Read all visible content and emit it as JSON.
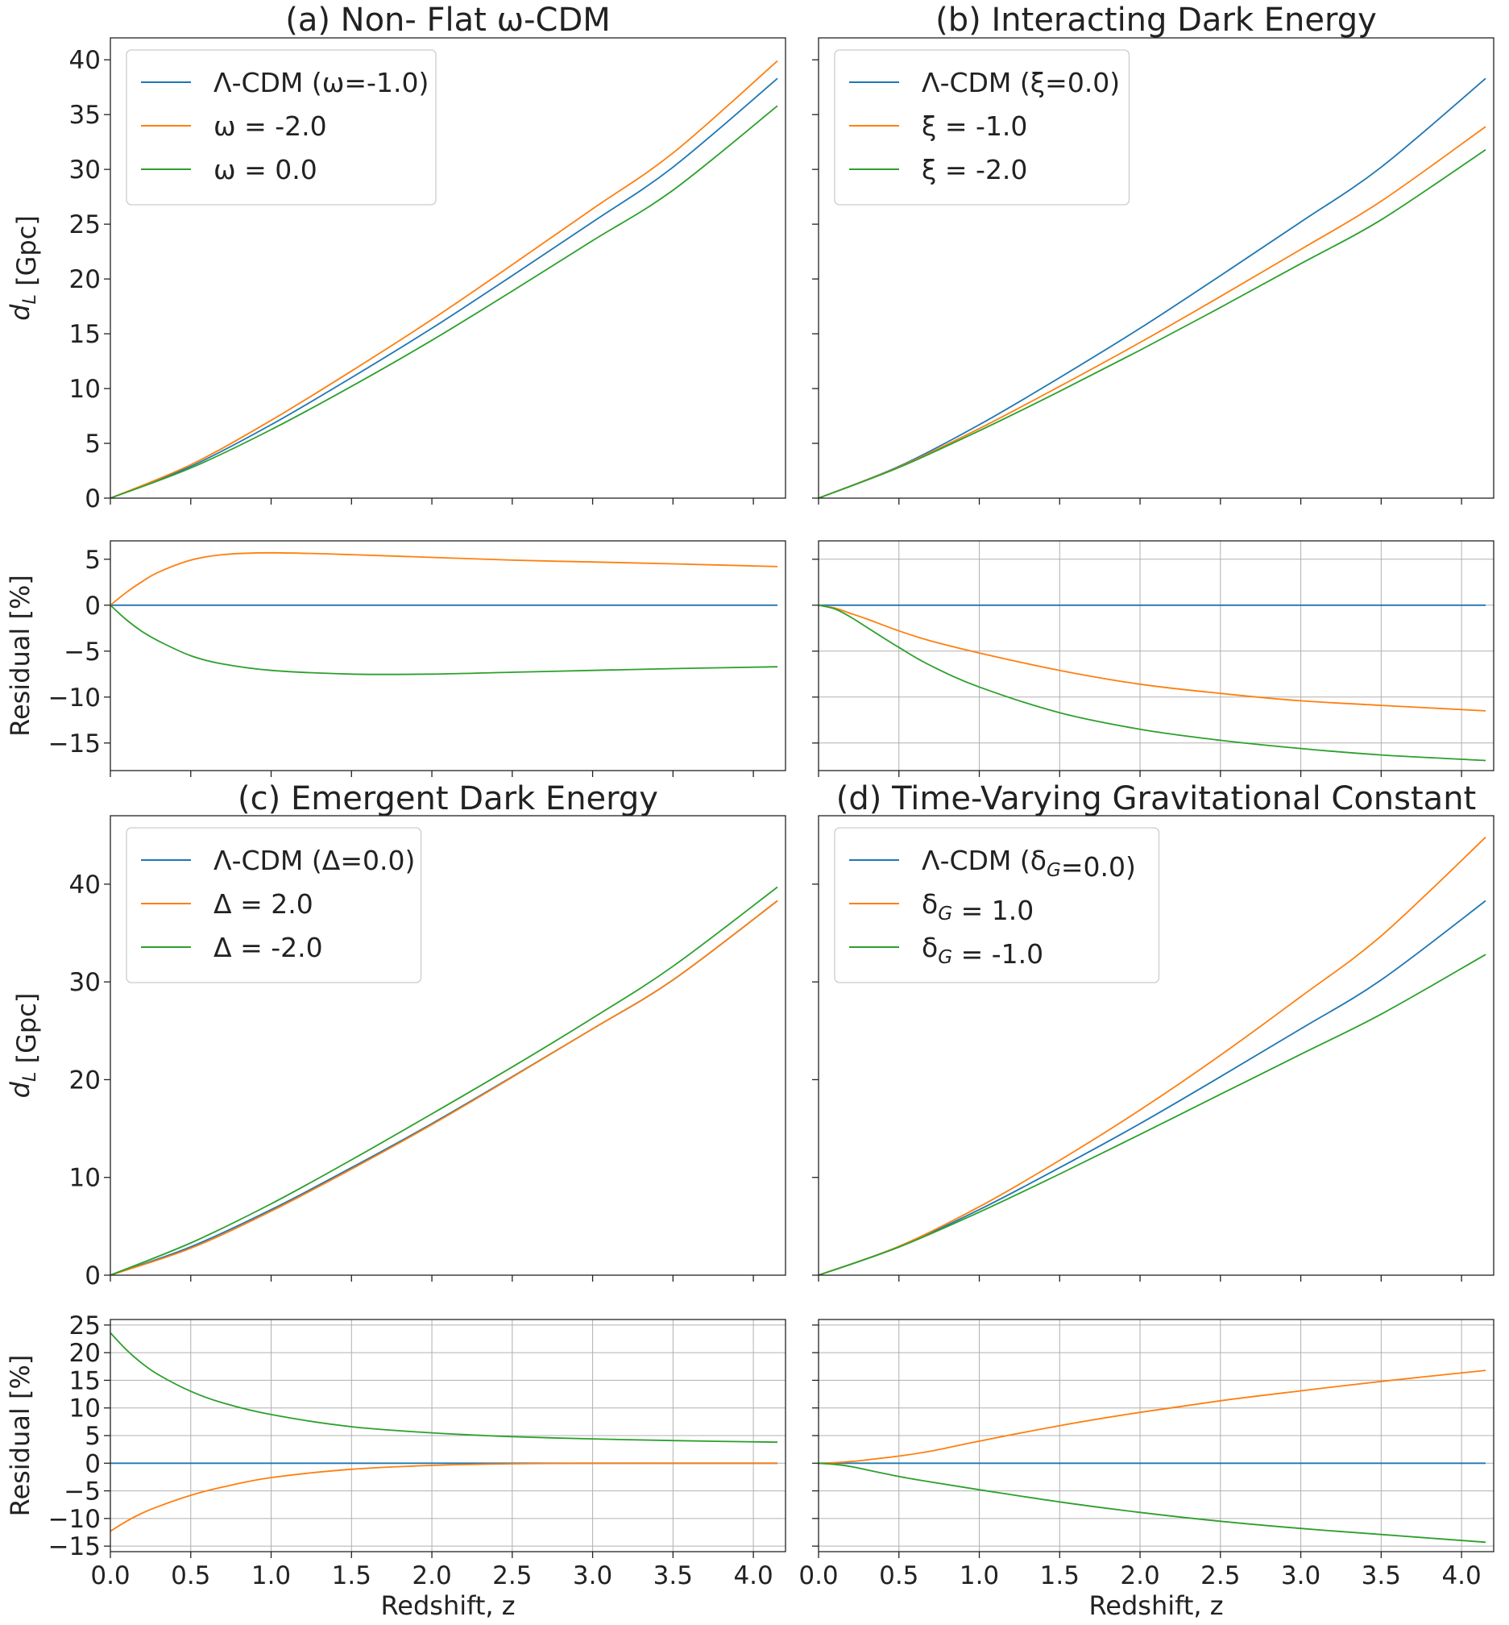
{
  "colors": {
    "blue": "#1f77b4",
    "orange": "#ff7f0e",
    "green": "#2ca02c"
  },
  "x_ticks": [
    0.0,
    0.5,
    1.0,
    1.5,
    2.0,
    2.5,
    3.0,
    3.5,
    4.0
  ],
  "x_tick_labels": [
    "0.0",
    "0.5",
    "1.0",
    "1.5",
    "2.0",
    "2.5",
    "3.0",
    "3.5",
    "4.0"
  ],
  "xlabel": "Redshift, z",
  "chart_data": [
    {
      "type": "line",
      "title": "(a) Non- Flat ω-CDM",
      "xlim": [
        0,
        4.2
      ],
      "main": {
        "ylabel": "d_L [Gpc]",
        "ylim": [
          0,
          42
        ],
        "yticks": [
          0,
          5,
          10,
          15,
          20,
          25,
          30,
          35,
          40
        ],
        "grid": false,
        "legend": "top-left",
        "series": [
          {
            "name": "Λ-CDM (ω=-1.0)",
            "color": "blue",
            "x": [
              0,
              0.5,
              1.0,
              1.5,
              2.0,
              2.5,
              3.0,
              3.5,
              4.15
            ],
            "y": [
              0,
              2.9,
              6.7,
              11.0,
              15.5,
              20.3,
              25.2,
              30.2,
              38.3
            ]
          },
          {
            "name": "ω = -2.0",
            "color": "orange",
            "x": [
              0,
              0.5,
              1.0,
              1.5,
              2.0,
              2.5,
              3.0,
              3.5,
              4.15
            ],
            "y": [
              0,
              3.05,
              7.1,
              11.6,
              16.3,
              21.3,
              26.4,
              31.5,
              39.9
            ]
          },
          {
            "name": "ω = 0.0",
            "color": "green",
            "x": [
              0,
              0.5,
              1.0,
              1.5,
              2.0,
              2.5,
              3.0,
              3.5,
              4.15
            ],
            "y": [
              0,
              2.75,
              6.25,
              10.2,
              14.4,
              18.9,
              23.5,
              28.1,
              35.8
            ]
          }
        ]
      },
      "residual": {
        "ylabel": "Residual [%]",
        "ylim": [
          -18,
          7
        ],
        "yticks": [
          5,
          0,
          -5,
          -10,
          -15
        ],
        "grid": false,
        "series": [
          {
            "color": "blue",
            "x": [
              0,
              4.15
            ],
            "y": [
              0,
              0
            ]
          },
          {
            "color": "orange",
            "x": [
              0,
              0.1,
              0.2,
              0.3,
              0.5,
              0.7,
              1.0,
              1.5,
              2.0,
              2.5,
              3.0,
              3.5,
              4.15
            ],
            "y": [
              0,
              1.4,
              2.6,
              3.6,
              4.9,
              5.5,
              5.7,
              5.5,
              5.2,
              4.9,
              4.7,
              4.5,
              4.2
            ]
          },
          {
            "color": "green",
            "x": [
              0,
              0.1,
              0.2,
              0.3,
              0.5,
              0.7,
              1.0,
              1.5,
              2.0,
              2.5,
              3.0,
              3.5,
              4.15
            ],
            "y": [
              0,
              -1.6,
              -2.9,
              -3.9,
              -5.5,
              -6.4,
              -7.1,
              -7.5,
              -7.5,
              -7.3,
              -7.1,
              -6.9,
              -6.7
            ]
          }
        ]
      }
    },
    {
      "type": "line",
      "title": "(b) Interacting Dark Energy",
      "xlim": [
        0,
        4.2
      ],
      "main": {
        "ylabel": "",
        "ylim": [
          0,
          42
        ],
        "yticks": [
          0,
          5,
          10,
          15,
          20,
          25,
          30,
          35,
          40
        ],
        "grid": false,
        "legend": "top-left",
        "series": [
          {
            "name": "Λ-CDM (ξ=0.0)",
            "color": "blue",
            "x": [
              0,
              0.5,
              1.0,
              1.5,
              2.0,
              2.5,
              3.0,
              3.5,
              4.15
            ],
            "y": [
              0,
              2.9,
              6.7,
              11.0,
              15.5,
              20.3,
              25.2,
              30.2,
              38.3
            ]
          },
          {
            "name": "ξ = -1.0",
            "color": "orange",
            "x": [
              0,
              0.5,
              1.0,
              1.5,
              2.0,
              2.5,
              3.0,
              3.5,
              4.15
            ],
            "y": [
              0,
              2.85,
              6.35,
              10.2,
              14.2,
              18.4,
              22.7,
              27.1,
              33.9
            ]
          },
          {
            "name": "ξ = -2.0",
            "color": "green",
            "x": [
              0,
              0.5,
              1.0,
              1.5,
              2.0,
              2.5,
              3.0,
              3.5,
              4.15
            ],
            "y": [
              0,
              2.8,
              6.15,
              9.75,
              13.5,
              17.4,
              21.4,
              25.4,
              31.8
            ]
          }
        ]
      },
      "residual": {
        "ylabel": "",
        "ylim": [
          -18,
          7
        ],
        "yticks": [
          5,
          0,
          -5,
          -10,
          -15
        ],
        "grid": true,
        "series": [
          {
            "color": "blue",
            "x": [
              0,
              4.15
            ],
            "y": [
              0,
              0
            ]
          },
          {
            "color": "orange",
            "x": [
              0,
              0.1,
              0.2,
              0.3,
              0.5,
              0.7,
              1.0,
              1.5,
              2.0,
              2.5,
              3.0,
              3.5,
              4.15
            ],
            "y": [
              0,
              -0.3,
              -0.9,
              -1.5,
              -2.8,
              -3.9,
              -5.2,
              -7.1,
              -8.6,
              -9.6,
              -10.4,
              -10.9,
              -11.5
            ]
          },
          {
            "color": "green",
            "x": [
              0,
              0.1,
              0.2,
              0.3,
              0.5,
              0.7,
              1.0,
              1.5,
              2.0,
              2.5,
              3.0,
              3.5,
              4.15
            ],
            "y": [
              0,
              -0.4,
              -1.3,
              -2.4,
              -4.6,
              -6.6,
              -8.9,
              -11.7,
              -13.5,
              -14.7,
              -15.6,
              -16.3,
              -16.9
            ]
          }
        ]
      }
    },
    {
      "type": "line",
      "title": "(c) Emergent Dark Energy",
      "xlim": [
        0,
        4.2
      ],
      "main": {
        "ylabel": "d_L [Gpc]",
        "ylim": [
          0,
          47
        ],
        "yticks": [
          0,
          10,
          20,
          30,
          40
        ],
        "grid": false,
        "legend": "top-left",
        "series": [
          {
            "name": "Λ-CDM (Δ=0.0)",
            "color": "blue",
            "x": [
              0,
              0.5,
              1.0,
              1.5,
              2.0,
              2.5,
              3.0,
              3.5,
              4.15
            ],
            "y": [
              0,
              2.9,
              6.7,
              11.0,
              15.5,
              20.3,
              25.2,
              30.2,
              38.3
            ]
          },
          {
            "name": "Δ = 2.0",
            "color": "orange",
            "x": [
              0,
              0.5,
              1.0,
              1.5,
              2.0,
              2.5,
              3.0,
              3.5,
              4.15
            ],
            "y": [
              0,
              2.75,
              6.55,
              10.85,
              15.4,
              20.25,
              25.2,
              30.2,
              38.3
            ]
          },
          {
            "name": "Δ = -2.0",
            "color": "green",
            "x": [
              0,
              0.5,
              1.0,
              1.5,
              2.0,
              2.5,
              3.0,
              3.5,
              4.15
            ],
            "y": [
              0,
              3.3,
              7.3,
              11.8,
              16.5,
              21.3,
              26.3,
              31.6,
              39.7
            ]
          }
        ]
      },
      "residual": {
        "ylabel": "Residual [%]",
        "ylim": [
          -16,
          26
        ],
        "yticks": [
          25,
          20,
          15,
          10,
          5,
          0,
          -5,
          -10,
          -15
        ],
        "grid": true,
        "series": [
          {
            "color": "blue",
            "x": [
              0,
              4.15
            ],
            "y": [
              0,
              0
            ]
          },
          {
            "color": "orange",
            "x": [
              0,
              0.1,
              0.2,
              0.3,
              0.5,
              0.7,
              1.0,
              1.5,
              2.0,
              2.5,
              3.0,
              3.5,
              4.15
            ],
            "y": [
              -12.3,
              -10.5,
              -9.0,
              -7.8,
              -5.8,
              -4.3,
              -2.6,
              -1.1,
              -0.4,
              -0.1,
              0,
              0,
              0
            ]
          },
          {
            "color": "green",
            "x": [
              0,
              0.1,
              0.2,
              0.3,
              0.5,
              0.7,
              1.0,
              1.5,
              2.0,
              2.5,
              3.0,
              3.5,
              4.15
            ],
            "y": [
              23.6,
              20.5,
              18.0,
              16.0,
              13.0,
              10.9,
              8.8,
              6.6,
              5.5,
              4.8,
              4.4,
              4.1,
              3.8
            ]
          }
        ]
      }
    },
    {
      "type": "line",
      "title": "(d) Time-Varying Gravitational Constant",
      "xlim": [
        0,
        4.2
      ],
      "main": {
        "ylabel": "",
        "ylim": [
          0,
          47
        ],
        "yticks": [
          0,
          10,
          20,
          30,
          40
        ],
        "grid": false,
        "legend": "top-left",
        "series": [
          {
            "name": "Λ-CDM (δ_G=0.0)",
            "color": "blue",
            "x": [
              0,
              0.5,
              1.0,
              1.5,
              2.0,
              2.5,
              3.0,
              3.5,
              4.15
            ],
            "y": [
              0,
              2.9,
              6.7,
              11.0,
              15.5,
              20.3,
              25.2,
              30.2,
              38.3
            ]
          },
          {
            "name": "δ_G = 1.0",
            "color": "orange",
            "x": [
              0,
              0.5,
              1.0,
              1.5,
              2.0,
              2.5,
              3.0,
              3.5,
              4.15
            ],
            "y": [
              0,
              2.95,
              7.0,
              11.75,
              16.9,
              22.5,
              28.5,
              34.7,
              44.8
            ]
          },
          {
            "name": "δ_G = -1.0",
            "color": "green",
            "x": [
              0,
              0.5,
              1.0,
              1.5,
              2.0,
              2.5,
              3.0,
              3.5,
              4.15
            ],
            "y": [
              0,
              2.88,
              6.45,
              10.35,
              14.4,
              18.5,
              22.6,
              26.7,
              32.8
            ]
          }
        ]
      },
      "residual": {
        "ylabel": "",
        "ylim": [
          -16,
          26
        ],
        "yticks": [
          25,
          20,
          15,
          10,
          5,
          0,
          -5,
          -10,
          -15
        ],
        "grid": true,
        "series": [
          {
            "color": "blue",
            "x": [
              0,
              4.15
            ],
            "y": [
              0,
              0
            ]
          },
          {
            "color": "orange",
            "x": [
              0,
              0.1,
              0.2,
              0.3,
              0.5,
              0.7,
              1.0,
              1.5,
              2.0,
              2.5,
              3.0,
              3.5,
              4.15
            ],
            "y": [
              0,
              0.1,
              0.3,
              0.6,
              1.3,
              2.2,
              4.0,
              6.8,
              9.2,
              11.3,
              13.1,
              14.8,
              16.8
            ]
          },
          {
            "color": "green",
            "x": [
              0,
              0.1,
              0.2,
              0.3,
              0.5,
              0.7,
              1.0,
              1.5,
              2.0,
              2.5,
              3.0,
              3.5,
              4.15
            ],
            "y": [
              0,
              -0.2,
              -0.6,
              -1.2,
              -2.4,
              -3.4,
              -4.8,
              -7.0,
              -8.9,
              -10.5,
              -11.8,
              -12.9,
              -14.3
            ]
          }
        ]
      }
    }
  ]
}
